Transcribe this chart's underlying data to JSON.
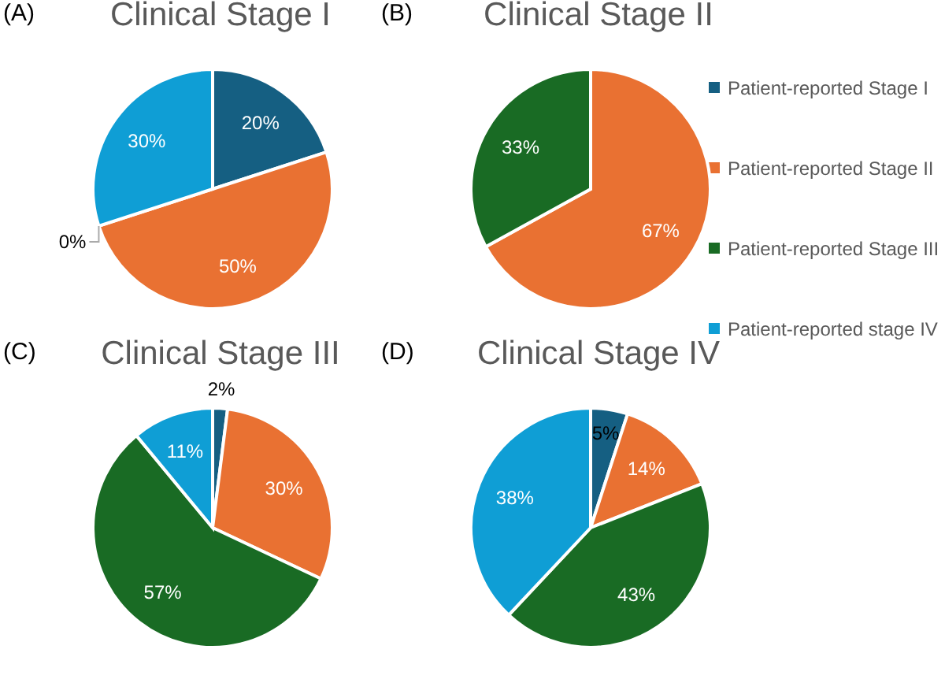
{
  "chart_data": [
    {
      "type": "pie",
      "title": "Clinical Stage I",
      "annotations": [
        "(A)"
      ],
      "categories": [
        "Patient-reported Stage I",
        "Patient-reported Stage II",
        "Patient-reported Stage III",
        "Patient-reported stage IV"
      ],
      "values": [
        20,
        50,
        0,
        30
      ],
      "value_labels": [
        "20%",
        "50%",
        "0%",
        "30%"
      ],
      "colors": [
        "#155f82",
        "#e97132",
        "#196b24",
        "#0f9ed5"
      ],
      "legend": "right"
    },
    {
      "type": "pie",
      "title": "Clinical Stage II",
      "annotations": [
        "(B)"
      ],
      "categories": [
        null,
        null,
        null,
        null
      ],
      "values": [
        0,
        67,
        33,
        0
      ],
      "value_labels": [
        null,
        "67%",
        "33%",
        null
      ],
      "colors": [
        "#155f82",
        "#e97132",
        "#196b24",
        "#0f9ed5"
      ]
    },
    {
      "type": "pie",
      "title": "Clinical Stage III",
      "annotations": [
        "(C)"
      ],
      "categories": [
        null,
        null,
        null,
        null
      ],
      "values": [
        2,
        30,
        57,
        11
      ],
      "value_labels": [
        "2%",
        "30%",
        "57%",
        "11%"
      ],
      "colors": [
        "#155f82",
        "#e97132",
        "#196b24",
        "#0f9ed5"
      ]
    },
    {
      "type": "pie",
      "title": "Clinical Stage IV",
      "annotations": [
        "(D)"
      ],
      "categories": [
        null,
        null,
        null,
        null
      ],
      "values": [
        5,
        14,
        43,
        38
      ],
      "value_labels": [
        "5%",
        "14%",
        "43%",
        "38%"
      ],
      "colors": [
        "#155f82",
        "#e97132",
        "#196b24",
        "#0f9ed5"
      ]
    }
  ]
}
